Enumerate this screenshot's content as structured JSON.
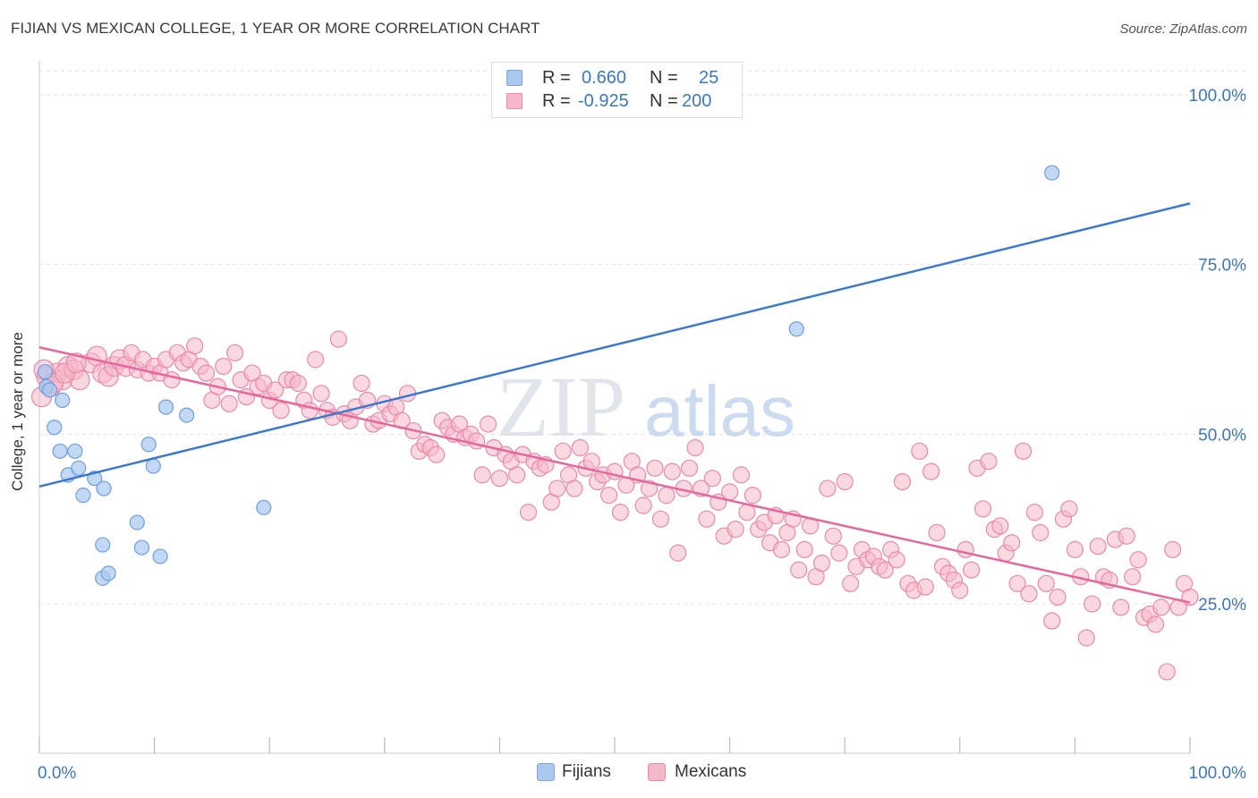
{
  "header": {
    "title": "FIJIAN VS MEXICAN COLLEGE, 1 YEAR OR MORE CORRELATION CHART",
    "source": "Source: ZipAtlas.com"
  },
  "watermark": "ZIPatlas",
  "legend_top": {
    "rows": [
      {
        "r_label": "R =",
        "r_value": "0.660",
        "n_label": "N =",
        "n_value": "25",
        "swatch": "#aac8f0"
      },
      {
        "r_label": "R =",
        "r_value": "-0.925",
        "n_label": "N =",
        "n_value": "200",
        "swatch": "#f5b8cb"
      }
    ]
  },
  "legend_bottom": [
    {
      "label": "Fijians",
      "color": "#aac8f0"
    },
    {
      "label": "Mexicans",
      "color": "#f5b8cb"
    }
  ],
  "chart_data": {
    "type": "scatter",
    "title": "FIJIAN VS MEXICAN COLLEGE, 1 YEAR OR MORE CORRELATION CHART",
    "xlabel": "",
    "ylabel": "College, 1 year or more",
    "xlim": [
      0,
      100
    ],
    "ylim": [
      3,
      105
    ],
    "x_tick_labels": [
      "0.0%",
      "100.0%"
    ],
    "y_ticks": [
      25,
      50,
      75,
      100
    ],
    "y_tick_labels": [
      "25.0%",
      "50.0%",
      "75.0%",
      "100.0%"
    ],
    "grid": true,
    "legend_position": "top-center",
    "colors": {
      "fijians": "#3a78d0",
      "mexicans": "#e8679a",
      "fijians_fill": "#aac8f0",
      "mexicans_fill": "#f5b8cb"
    },
    "series": [
      {
        "name": "Fijians",
        "trend": [
          [
            0,
            42.3
          ],
          [
            100,
            84.0
          ]
        ],
        "points": [
          [
            0.5,
            59.2
          ],
          [
            0.6,
            57.0
          ],
          [
            0.9,
            56.5
          ],
          [
            1.3,
            51.0
          ],
          [
            1.8,
            47.5
          ],
          [
            2.0,
            55.0
          ],
          [
            2.5,
            44.0
          ],
          [
            3.1,
            47.5
          ],
          [
            3.4,
            45.0
          ],
          [
            3.8,
            41.0
          ],
          [
            4.8,
            43.5
          ],
          [
            5.6,
            42.0
          ],
          [
            5.5,
            33.7
          ],
          [
            5.5,
            28.8
          ],
          [
            6.0,
            29.5
          ],
          [
            8.5,
            37.0
          ],
          [
            8.9,
            33.3
          ],
          [
            9.5,
            48.5
          ],
          [
            9.9,
            45.3
          ],
          [
            10.5,
            32.0
          ],
          [
            11.0,
            54.0
          ],
          [
            12.8,
            52.8
          ],
          [
            19.5,
            39.2
          ],
          [
            65.8,
            65.5
          ],
          [
            88.0,
            88.5
          ]
        ]
      },
      {
        "name": "Mexicans",
        "trend": [
          [
            0,
            62.8
          ],
          [
            100,
            25.2
          ]
        ],
        "points": [
          [
            0.6,
            58.5
          ],
          [
            1.0,
            57.0
          ],
          [
            1.5,
            59.0
          ],
          [
            2.0,
            58.0
          ],
          [
            2.5,
            60.0
          ],
          [
            3.0,
            59.5
          ],
          [
            3.5,
            58.0
          ],
          [
            4.5,
            60.5
          ],
          [
            5.0,
            61.5
          ],
          [
            5.5,
            59.0
          ],
          [
            6.0,
            58.5
          ],
          [
            6.5,
            60.0
          ],
          [
            7.0,
            61.0
          ],
          [
            7.5,
            60.0
          ],
          [
            8.0,
            62.0
          ],
          [
            8.5,
            59.5
          ],
          [
            9.0,
            61.0
          ],
          [
            9.5,
            59.0
          ],
          [
            10.0,
            60.0
          ],
          [
            10.5,
            59.0
          ],
          [
            11.0,
            61.0
          ],
          [
            11.5,
            58.0
          ],
          [
            12.0,
            62.0
          ],
          [
            12.5,
            60.5
          ],
          [
            13.0,
            61.0
          ],
          [
            13.5,
            63.0
          ],
          [
            14.0,
            60.0
          ],
          [
            14.5,
            59.0
          ],
          [
            15.0,
            55.0
          ],
          [
            15.5,
            57.0
          ],
          [
            16.0,
            60.0
          ],
          [
            16.5,
            54.5
          ],
          [
            17.0,
            62.0
          ],
          [
            17.5,
            58.0
          ],
          [
            18.0,
            55.5
          ],
          [
            18.5,
            59.0
          ],
          [
            19.0,
            57.0
          ],
          [
            19.5,
            57.5
          ],
          [
            20.0,
            55.0
          ],
          [
            20.5,
            56.5
          ],
          [
            21.0,
            53.5
          ],
          [
            21.5,
            58.0
          ],
          [
            22.0,
            58.0
          ],
          [
            22.5,
            57.5
          ],
          [
            23.0,
            55.0
          ],
          [
            23.5,
            53.5
          ],
          [
            24.0,
            61.0
          ],
          [
            24.5,
            56.0
          ],
          [
            25.0,
            53.5
          ],
          [
            25.5,
            52.5
          ],
          [
            26.0,
            64.0
          ],
          [
            26.5,
            53.0
          ],
          [
            27.0,
            52.0
          ],
          [
            27.5,
            54.0
          ],
          [
            28.0,
            57.5
          ],
          [
            28.5,
            55.0
          ],
          [
            29.0,
            51.5
          ],
          [
            29.5,
            52.0
          ],
          [
            30.0,
            54.5
          ],
          [
            30.5,
            53.0
          ],
          [
            31.0,
            54.0
          ],
          [
            31.5,
            52.0
          ],
          [
            32.0,
            56.0
          ],
          [
            32.5,
            50.5
          ],
          [
            33.0,
            47.5
          ],
          [
            33.5,
            48.5
          ],
          [
            34.0,
            48.0
          ],
          [
            34.5,
            47.0
          ],
          [
            35.0,
            52.0
          ],
          [
            35.5,
            51.0
          ],
          [
            36.0,
            50.0
          ],
          [
            36.5,
            51.5
          ],
          [
            37.0,
            49.5
          ],
          [
            37.5,
            50.0
          ],
          [
            38.0,
            49.0
          ],
          [
            38.5,
            44.0
          ],
          [
            39.0,
            51.5
          ],
          [
            39.5,
            48.0
          ],
          [
            40.0,
            43.5
          ],
          [
            40.5,
            47.0
          ],
          [
            41.0,
            46.0
          ],
          [
            41.5,
            44.0
          ],
          [
            42.0,
            47.0
          ],
          [
            42.5,
            38.5
          ],
          [
            43.0,
            46.0
          ],
          [
            43.5,
            45.0
          ],
          [
            44.0,
            45.5
          ],
          [
            44.5,
            40.0
          ],
          [
            45.0,
            42.0
          ],
          [
            45.5,
            47.5
          ],
          [
            46.0,
            44.0
          ],
          [
            46.5,
            42.0
          ],
          [
            47.0,
            48.0
          ],
          [
            47.5,
            45.0
          ],
          [
            48.0,
            46.0
          ],
          [
            48.5,
            43.0
          ],
          [
            49.0,
            44.0
          ],
          [
            49.5,
            41.0
          ],
          [
            50.0,
            44.5
          ],
          [
            50.5,
            38.5
          ],
          [
            51.0,
            42.5
          ],
          [
            51.5,
            46.0
          ],
          [
            52.0,
            44.0
          ],
          [
            52.5,
            39.5
          ],
          [
            53.0,
            42.0
          ],
          [
            53.5,
            45.0
          ],
          [
            54.0,
            37.5
          ],
          [
            54.5,
            41.0
          ],
          [
            55.0,
            44.5
          ],
          [
            55.5,
            32.5
          ],
          [
            56.0,
            42.0
          ],
          [
            56.5,
            45.0
          ],
          [
            57.0,
            48.0
          ],
          [
            57.5,
            42.0
          ],
          [
            58.0,
            37.5
          ],
          [
            58.5,
            43.5
          ],
          [
            59.0,
            40.0
          ],
          [
            59.5,
            35.0
          ],
          [
            60.0,
            41.5
          ],
          [
            60.5,
            36.0
          ],
          [
            61.0,
            44.0
          ],
          [
            61.5,
            38.5
          ],
          [
            62.0,
            41.0
          ],
          [
            62.5,
            36.0
          ],
          [
            63.0,
            37.0
          ],
          [
            63.5,
            34.0
          ],
          [
            64.0,
            38.0
          ],
          [
            64.5,
            33.0
          ],
          [
            65.0,
            35.5
          ],
          [
            65.5,
            37.5
          ],
          [
            66.0,
            30.0
          ],
          [
            66.5,
            33.0
          ],
          [
            67.0,
            36.5
          ],
          [
            67.5,
            29.0
          ],
          [
            68.0,
            31.0
          ],
          [
            68.5,
            42.0
          ],
          [
            69.0,
            35.0
          ],
          [
            69.5,
            32.5
          ],
          [
            70.0,
            43.0
          ],
          [
            70.5,
            28.0
          ],
          [
            71.0,
            30.5
          ],
          [
            71.5,
            33.0
          ],
          [
            72.0,
            31.5
          ],
          [
            72.5,
            32.0
          ],
          [
            73.0,
            30.5
          ],
          [
            73.5,
            30.0
          ],
          [
            74.0,
            33.0
          ],
          [
            74.5,
            31.5
          ],
          [
            75.0,
            43.0
          ],
          [
            75.5,
            28.0
          ],
          [
            76.0,
            27.0
          ],
          [
            76.5,
            47.5
          ],
          [
            77.0,
            27.5
          ],
          [
            77.5,
            44.5
          ],
          [
            78.0,
            35.5
          ],
          [
            78.5,
            30.5
          ],
          [
            79.0,
            29.5
          ],
          [
            79.5,
            28.5
          ],
          [
            80.0,
            27.0
          ],
          [
            80.5,
            33.0
          ],
          [
            81.0,
            30.0
          ],
          [
            81.5,
            45.0
          ],
          [
            82.0,
            39.0
          ],
          [
            82.5,
            46.0
          ],
          [
            83.0,
            36.0
          ],
          [
            83.5,
            36.5
          ],
          [
            84.0,
            32.5
          ],
          [
            84.5,
            34.0
          ],
          [
            85.0,
            28.0
          ],
          [
            85.5,
            47.5
          ],
          [
            86.0,
            26.5
          ],
          [
            86.5,
            38.5
          ],
          [
            87.0,
            35.5
          ],
          [
            87.5,
            28.0
          ],
          [
            88.0,
            22.5
          ],
          [
            88.5,
            26.0
          ],
          [
            89.0,
            37.5
          ],
          [
            89.5,
            39.0
          ],
          [
            90.0,
            33.0
          ],
          [
            90.5,
            29.0
          ],
          [
            91.0,
            20.0
          ],
          [
            91.5,
            25.0
          ],
          [
            92.0,
            33.5
          ],
          [
            92.5,
            29.0
          ],
          [
            93.0,
            28.5
          ],
          [
            93.5,
            34.5
          ],
          [
            94.0,
            24.5
          ],
          [
            94.5,
            35.0
          ],
          [
            95.0,
            29.0
          ],
          [
            95.5,
            31.5
          ],
          [
            96.0,
            23.0
          ],
          [
            96.5,
            23.5
          ],
          [
            97.0,
            22.0
          ],
          [
            97.5,
            24.5
          ],
          [
            98.0,
            15.0
          ],
          [
            98.5,
            33.0
          ],
          [
            99.0,
            24.5
          ],
          [
            99.5,
            28.0
          ],
          [
            100.0,
            26.0
          ],
          [
            0.2,
            55.5
          ],
          [
            0.4,
            59.5
          ],
          [
            1.2,
            57.5
          ],
          [
            2.2,
            59.0
          ],
          [
            3.2,
            60.5
          ]
        ]
      }
    ]
  }
}
